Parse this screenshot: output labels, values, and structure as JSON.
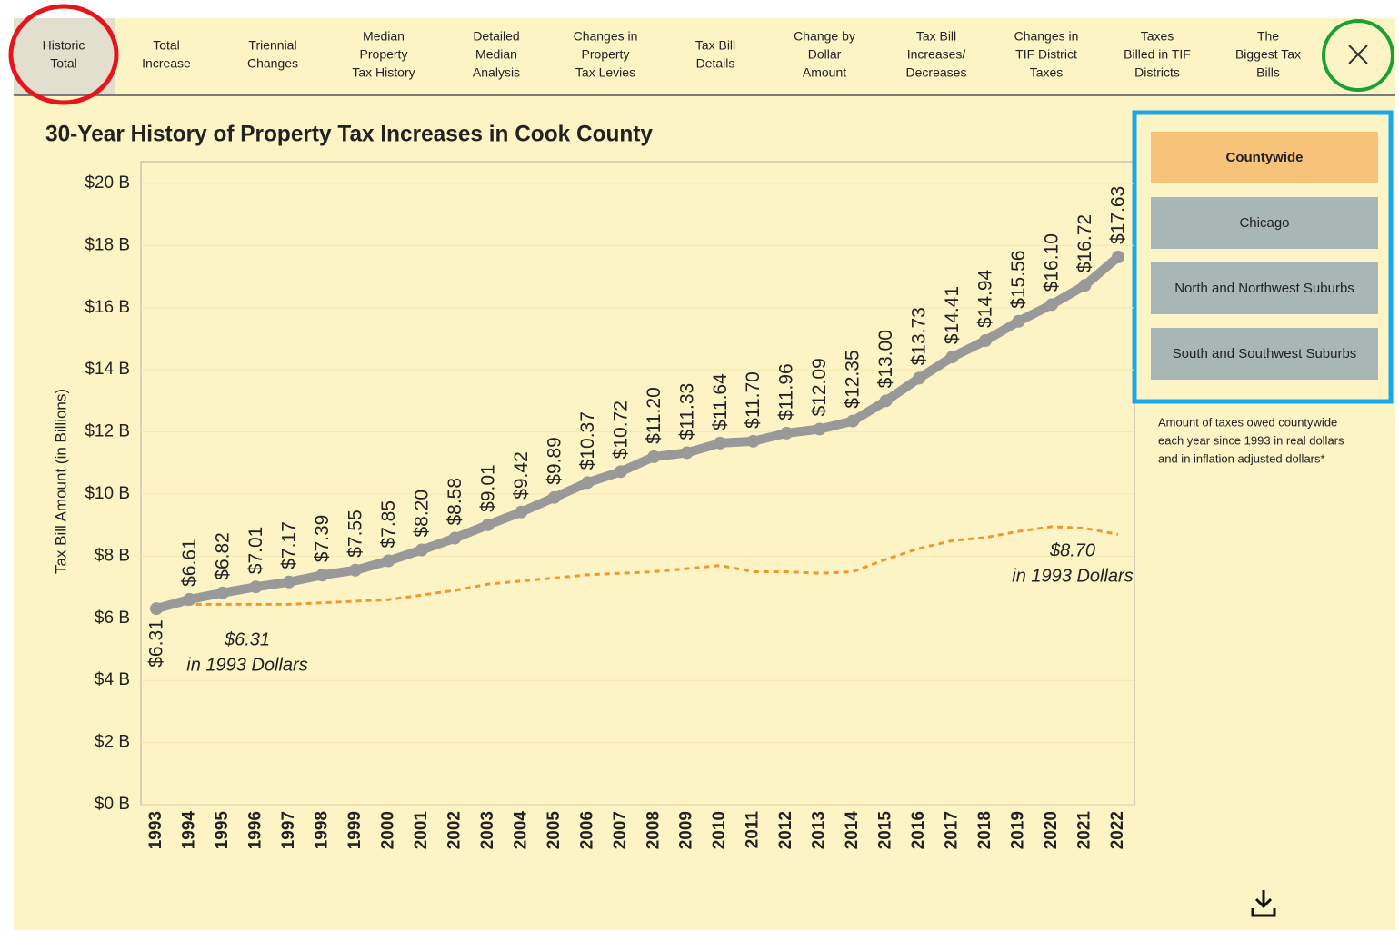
{
  "tabs": [
    [
      "Historic",
      "Total"
    ],
    [
      "Total",
      "Increase"
    ],
    [
      "Triennial",
      "Changes"
    ],
    [
      "Median",
      "Property",
      "Tax History"
    ],
    [
      "Detailed",
      "Median",
      "Analysis"
    ],
    [
      "Changes in",
      "Property",
      "Tax Levies"
    ],
    [
      "Tax Bill",
      "Details"
    ],
    [
      "Change by",
      "Dollar",
      "Amount"
    ],
    [
      "Tax Bill",
      "Increases/",
      "Decreases"
    ],
    [
      "Changes in",
      "TIF District",
      "Taxes"
    ],
    [
      "Taxes",
      "Billed in TIF",
      "Districts"
    ],
    [
      "The",
      "Biggest Tax",
      "Bills"
    ]
  ],
  "filters": [
    "Countywide",
    "Chicago",
    "North and Northwest Suburbs",
    "South and Southwest Suburbs"
  ],
  "description": [
    "Amount of taxes owed countywide",
    "each year since 1993 in real dollars",
    "and in inflation adjusted dollars*"
  ],
  "chart_data": {
    "type": "line",
    "title": "30-Year History of Property Tax Increases in Cook County",
    "y_label": "Tax Bill Amount (in Billions)",
    "categories": [
      "1993",
      "1994",
      "1995",
      "1996",
      "1997",
      "1998",
      "1999",
      "2000",
      "2001",
      "2002",
      "2003",
      "2004",
      "2005",
      "2006",
      "2007",
      "2008",
      "2009",
      "2010",
      "2011",
      "2012",
      "2013",
      "2014",
      "2015",
      "2016",
      "2017",
      "2018",
      "2019",
      "2020",
      "2021",
      "2022"
    ],
    "series": [
      {
        "color": "#999999",
        "values": [
          6.31,
          6.61,
          6.82,
          7.01,
          7.17,
          7.39,
          7.55,
          7.85,
          8.2,
          8.58,
          9.01,
          9.42,
          9.89,
          10.37,
          10.72,
          11.2,
          11.33,
          11.64,
          11.7,
          11.96,
          12.09,
          12.35,
          13.0,
          13.73,
          14.41,
          14.94,
          15.56,
          16.1,
          16.72,
          17.63
        ],
        "value_labels": [
          "$6.31",
          "$6.61",
          "$6.82",
          "$7.01",
          "$7.17",
          "$7.39",
          "$7.55",
          "$7.85",
          "$8.20",
          "$8.58",
          "$9.01",
          "$9.42",
          "$9.89",
          "$10.37",
          "$10.72",
          "$11.20",
          "$11.33",
          "$11.64",
          "$11.70",
          "$11.96",
          "$12.09",
          "$12.35",
          "$13.00",
          "$13.73",
          "$14.41",
          "$14.94",
          "$15.56",
          "$16.10",
          "$16.72",
          "$17.63"
        ]
      },
      {
        "color": "#f0982f",
        "style": "dashed",
        "values": [
          6.31,
          6.45,
          6.45,
          6.45,
          6.45,
          6.5,
          6.55,
          6.6,
          6.75,
          6.9,
          7.1,
          7.2,
          7.3,
          7.4,
          7.45,
          7.5,
          7.6,
          7.7,
          7.5,
          7.5,
          7.45,
          7.5,
          7.9,
          8.25,
          8.5,
          8.6,
          8.8,
          8.95,
          8.9,
          8.7
        ]
      }
    ],
    "annotations": [
      {
        "lines": [
          "$6.31",
          "in 1993 Dollars"
        ]
      },
      {
        "lines": [
          "$8.70",
          "in 1993 Dollars"
        ]
      }
    ],
    "ylim": [
      0,
      20.7
    ],
    "yticks": [
      {
        "value": 0,
        "label": "$0 B"
      },
      {
        "value": 2,
        "label": "$2 B"
      },
      {
        "value": 4,
        "label": "$4 B"
      },
      {
        "value": 6,
        "label": "$6 B"
      },
      {
        "value": 8,
        "label": "$8 B"
      },
      {
        "value": 10,
        "label": "$10 B"
      },
      {
        "value": 12,
        "label": "$12 B"
      },
      {
        "value": 14,
        "label": "$14 B"
      },
      {
        "value": 16,
        "label": "$16 B"
      },
      {
        "value": 18,
        "label": "$18 B"
      },
      {
        "value": 20,
        "label": "$20 B"
      }
    ],
    "grid": true
  }
}
